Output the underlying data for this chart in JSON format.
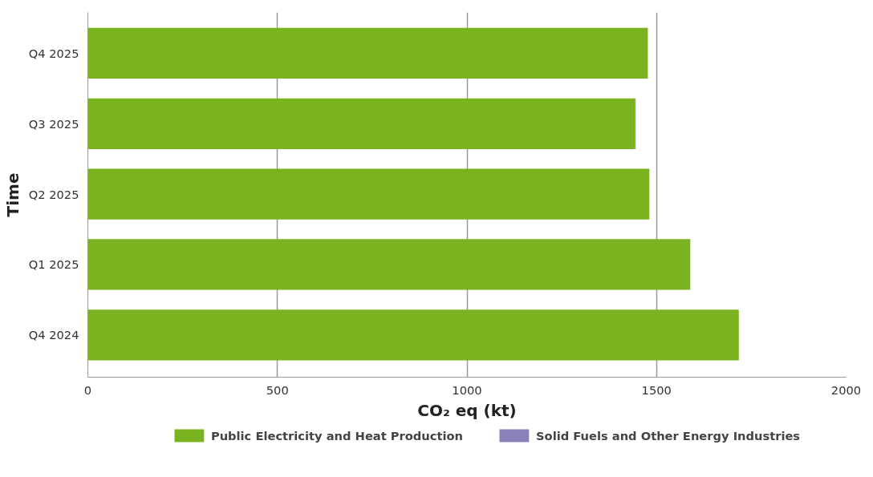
{
  "chart_data": {
    "type": "bar",
    "orientation": "horizontal",
    "stacked": true,
    "xlabel": "CO₂ eq (kt)",
    "ylabel": "Time",
    "categories": [
      "Q4 2025",
      "Q3 2025",
      "Q2 2025",
      "Q1 2025",
      "Q4 2024"
    ],
    "series": [
      {
        "name": "Public Electricity and Heat Production",
        "color": "#7ab31f",
        "values": [
          1477,
          1443,
          1481,
          1589,
          1717
        ]
      },
      {
        "name": "Solid Fuels and Other Energy Industries",
        "color": "#8b80b8",
        "values": [
          0,
          2,
          0,
          0,
          0
        ]
      }
    ],
    "xlim": [
      0,
      2000
    ],
    "xticks": [
      0,
      500,
      1000,
      1500,
      2000
    ],
    "grid": "x",
    "legend": "bottom"
  }
}
